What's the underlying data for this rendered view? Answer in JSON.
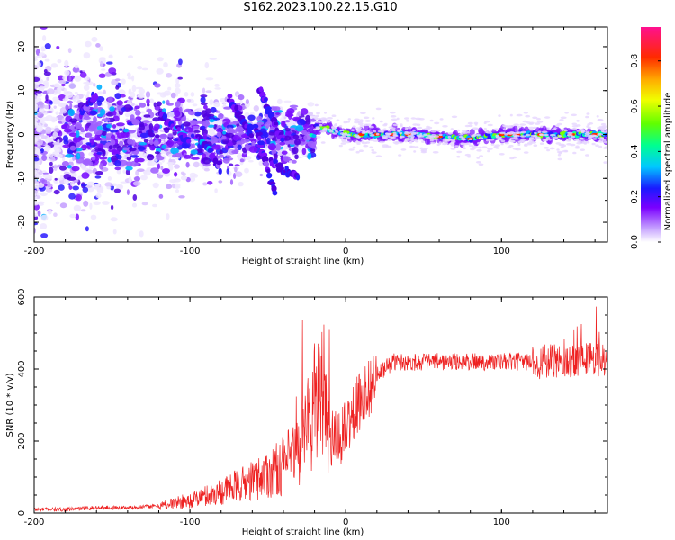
{
  "title": "S162.2023.100.22.15.G10",
  "chart_data": [
    {
      "type": "heatmap",
      "xlabel": "Height of straight line (km)",
      "ylabel": "Frequency (Hz)",
      "xlim": [
        -200,
        168
      ],
      "ylim": [
        -24.5,
        24.5
      ],
      "x_ticks": [
        -200,
        -100,
        0,
        100
      ],
      "y_ticks": [
        -20,
        -10,
        0,
        10,
        20
      ],
      "colorbar": {
        "label": "Normalized spectral amplitude",
        "range": [
          0.0,
          0.95
        ],
        "ticks": [
          0.0,
          0.2,
          0.4,
          0.6,
          0.8
        ]
      },
      "ridge": {
        "description_points_x": [
          -20,
          0,
          40,
          80,
          100,
          140,
          168
        ],
        "frequency": [
          2,
          0,
          0,
          -1,
          0,
          0,
          0
        ]
      }
    },
    {
      "type": "line",
      "xlabel": "Height of straight line (km)",
      "ylabel": "SNR (10 * v/v)",
      "xlim": [
        -200,
        168
      ],
      "ylim": [
        0,
        600
      ],
      "x_ticks": [
        -200,
        -100,
        0,
        100
      ],
      "y_ticks": [
        0,
        200,
        400,
        600
      ],
      "series": [
        {
          "color": "#ee2222",
          "x": [
            -200,
            -180,
            -160,
            -140,
            -120,
            -100,
            -80,
            -60,
            -40,
            -30,
            -20,
            -15,
            -10,
            -5,
            0,
            10,
            20,
            30,
            40,
            60,
            80,
            100,
            120,
            140,
            150,
            160,
            168
          ],
          "y": [
            10,
            10,
            15,
            15,
            20,
            35,
            60,
            90,
            130,
            170,
            300,
            340,
            200,
            200,
            230,
            320,
            380,
            420,
            420,
            420,
            420,
            420,
            420,
            420,
            430,
            430,
            420
          ]
        }
      ]
    }
  ]
}
